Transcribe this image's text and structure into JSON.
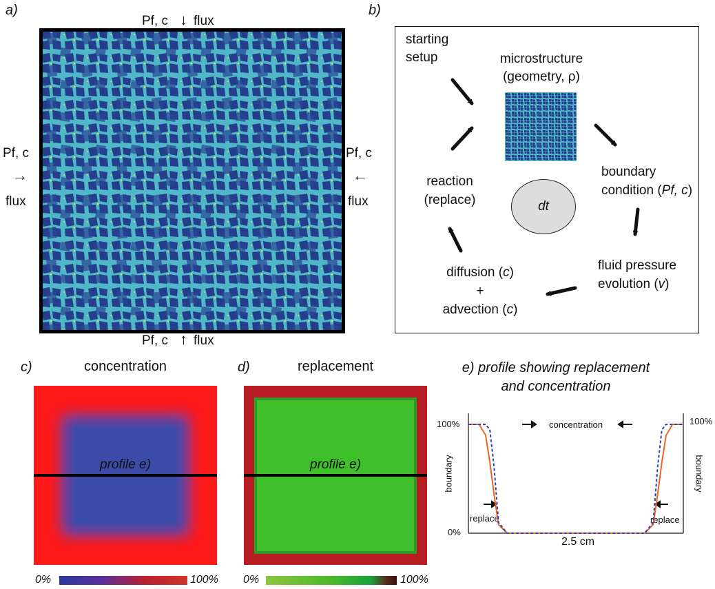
{
  "panel_a": {
    "letter": "a)",
    "top": {
      "pf": "Pf, c",
      "flux": "flux"
    },
    "bottom": {
      "pf": "Pf, c",
      "flux": "flux"
    },
    "left": {
      "pf": "Pf, c",
      "flux": "flux"
    },
    "right": {
      "pf": "Pf, c",
      "flux": "flux"
    }
  },
  "panel_b": {
    "letter": "b)",
    "starting_setup": [
      "starting",
      "setup"
    ],
    "microstructure": [
      "microstructure",
      "(geometry, ρ)"
    ],
    "boundary": {
      "line1": "boundary",
      "line2_prefix": "condition (",
      "line2_var": "Pf, c",
      "line2_suffix": ")"
    },
    "fluid": {
      "line1": "fluid pressure",
      "line2_prefix": "evolution (",
      "line2_var": "v",
      "line2_suffix": ")"
    },
    "diffusion": {
      "line1_prefix": "diffusion (",
      "var": "c",
      "suffix": ")",
      "plus": "+",
      "line3_prefix": "advection ("
    },
    "reaction": [
      "reaction",
      "(replace)"
    ],
    "center": "dt"
  },
  "panel_c": {
    "letter": "c)",
    "title": "concentration",
    "profile": "profile e)",
    "scale_min": "0%",
    "scale_max": "100%",
    "colors": {
      "outer": "#ff1a1a",
      "inner": "#3c4aa8"
    }
  },
  "panel_d": {
    "letter": "d)",
    "title": "replacement",
    "profile": "profile e)",
    "scale_min": "0%",
    "scale_max": "100%",
    "colors": {
      "outer": "#b81c22",
      "inner": "#3fbf2a"
    }
  },
  "panel_e": {
    "letter": "e)",
    "title_line1": "profile showing replacement",
    "title_line2": "and concentration",
    "y_top": "100%",
    "y_bottom": "0%",
    "right_top": "100%",
    "side_label": "boundary",
    "concentration_label": "concentration",
    "replace_label": "replace",
    "x_label": "2.5 cm",
    "colors": {
      "replacement": "#f0641e",
      "concentration": "#2a3fbf"
    }
  },
  "chart_data": {
    "type": "line",
    "title": "profile showing replacement and concentration",
    "xlabel": "2.5 cm",
    "ylabel": "",
    "ylim": [
      0,
      100
    ],
    "x": [
      0,
      0.05,
      0.08,
      0.1,
      0.12,
      0.14,
      0.18,
      0.5,
      0.82,
      0.86,
      0.88,
      0.9,
      0.92,
      0.95,
      1.0
    ],
    "series": [
      {
        "name": "replace",
        "values": [
          100,
          100,
          90,
          65,
          35,
          8,
          0,
          0,
          0,
          8,
          35,
          65,
          90,
          100,
          100
        ]
      },
      {
        "name": "concentration",
        "values": [
          100,
          100,
          100,
          95,
          60,
          10,
          0,
          0,
          0,
          10,
          60,
          95,
          100,
          100,
          100
        ]
      }
    ]
  }
}
